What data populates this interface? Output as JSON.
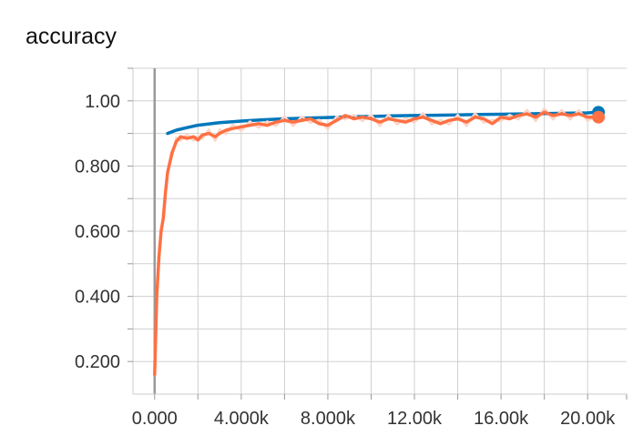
{
  "chart_data": {
    "type": "line",
    "title": "accuracy",
    "xlabel": "",
    "ylabel": "",
    "xlim": [
      -1000,
      21800
    ],
    "ylim": [
      0.1,
      1.1
    ],
    "x_ticks": [
      0,
      4000,
      8000,
      12000,
      16000,
      20000
    ],
    "x_tick_labels": [
      "0.000",
      "4.000k",
      "8.000k",
      "12.00k",
      "16.00k",
      "20.00k"
    ],
    "y_ticks": [
      0.2,
      0.4,
      0.6,
      0.8,
      1.0
    ],
    "y_tick_labels": [
      "0.200",
      "0.400",
      "0.600",
      "0.800",
      "1.00"
    ],
    "grid": true,
    "colors": {
      "blue": "#0077bb",
      "orange": "#ff7043",
      "orange_raw": "#fcd5c8",
      "zero_line": "#999999",
      "grid": "#d0d0d0"
    },
    "series": [
      {
        "color": "blue",
        "x": [
          600,
          1000,
          1500,
          2000,
          3000,
          4000,
          5000,
          6000,
          7000,
          8000,
          9000,
          10000,
          11000,
          12000,
          13000,
          14000,
          15000,
          16000,
          17000,
          18000,
          19000,
          20000,
          20500
        ],
        "y": [
          0.9,
          0.91,
          0.918,
          0.925,
          0.933,
          0.938,
          0.942,
          0.945,
          0.947,
          0.949,
          0.951,
          0.952,
          0.954,
          0.955,
          0.956,
          0.957,
          0.958,
          0.959,
          0.96,
          0.961,
          0.962,
          0.963,
          0.965
        ]
      },
      {
        "color": "orange",
        "x": [
          0,
          100,
          200,
          300,
          400,
          500,
          600,
          800,
          1000,
          1200,
          1500,
          1800,
          2000,
          2200,
          2500,
          2800,
          3000,
          3300,
          3600,
          4000,
          4400,
          4800,
          5200,
          5600,
          6000,
          6400,
          6800,
          7200,
          7600,
          8000,
          8400,
          8800,
          9200,
          9600,
          10000,
          10400,
          10800,
          11200,
          11600,
          12000,
          12400,
          12800,
          13200,
          13600,
          14000,
          14400,
          14800,
          15200,
          15600,
          16000,
          16400,
          16800,
          17200,
          17600,
          18000,
          18400,
          18800,
          19200,
          19600,
          20000,
          20500
        ],
        "y": [
          0.16,
          0.4,
          0.52,
          0.6,
          0.64,
          0.72,
          0.78,
          0.84,
          0.875,
          0.89,
          0.885,
          0.89,
          0.88,
          0.895,
          0.9,
          0.89,
          0.9,
          0.91,
          0.915,
          0.92,
          0.925,
          0.93,
          0.925,
          0.935,
          0.94,
          0.935,
          0.94,
          0.945,
          0.93,
          0.925,
          0.94,
          0.955,
          0.945,
          0.95,
          0.945,
          0.935,
          0.945,
          0.94,
          0.935,
          0.945,
          0.95,
          0.94,
          0.93,
          0.94,
          0.945,
          0.935,
          0.95,
          0.945,
          0.93,
          0.95,
          0.945,
          0.955,
          0.96,
          0.95,
          0.965,
          0.955,
          0.96,
          0.955,
          0.96,
          0.95,
          0.95
        ]
      }
    ]
  }
}
